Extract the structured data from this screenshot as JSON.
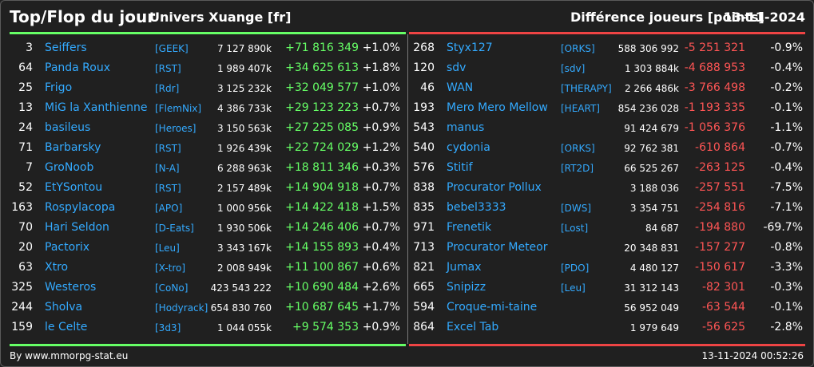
{
  "header": {
    "title": "Top/Flop du jour",
    "univers": "Univers Xuange [fr]",
    "diff_label": "Différence joueurs [points]",
    "date": "13-11-2024"
  },
  "colors": {
    "positive": "#66ff66",
    "negative": "#ff5555",
    "link": "#33aaff",
    "background": "#202020"
  },
  "top": [
    {
      "rank": "3",
      "name": "Seiffers",
      "guild": "[GEEK]",
      "total": "7 127 890k",
      "diff": "+71 816 349",
      "pct": "+1.0%"
    },
    {
      "rank": "64",
      "name": "Panda Roux",
      "guild": "[RST]",
      "total": "1 989 407k",
      "diff": "+34 625 613",
      "pct": "+1.8%"
    },
    {
      "rank": "25",
      "name": "Frigo",
      "guild": "[Rdr]",
      "total": "3 125 232k",
      "diff": "+32 049 577",
      "pct": "+1.0%"
    },
    {
      "rank": "13",
      "name": "MiG la Xanthienne",
      "guild": "[FlemNix]",
      "total": "4 386 733k",
      "diff": "+29 123 223",
      "pct": "+0.7%"
    },
    {
      "rank": "24",
      "name": "basileus",
      "guild": "[Heroes]",
      "total": "3 150 563k",
      "diff": "+27 225 085",
      "pct": "+0.9%"
    },
    {
      "rank": "71",
      "name": "Barbarsky",
      "guild": "[RST]",
      "total": "1 926 439k",
      "diff": "+22 724 029",
      "pct": "+1.2%"
    },
    {
      "rank": "7",
      "name": "GroNoob",
      "guild": "[N-A]",
      "total": "6 288 963k",
      "diff": "+18 811 346",
      "pct": "+0.3%"
    },
    {
      "rank": "52",
      "name": "EtYSontou",
      "guild": "[RST]",
      "total": "2 157 489k",
      "diff": "+14 904 918",
      "pct": "+0.7%"
    },
    {
      "rank": "163",
      "name": "Rospylacopa",
      "guild": "[APO]",
      "total": "1 000 956k",
      "diff": "+14 422 418",
      "pct": "+1.5%"
    },
    {
      "rank": "70",
      "name": "Hari Seldon",
      "guild": "[D-Eats]",
      "total": "1 930 506k",
      "diff": "+14 246 406",
      "pct": "+0.7%"
    },
    {
      "rank": "20",
      "name": "Pactorix",
      "guild": "[Leu]",
      "total": "3 343 167k",
      "diff": "+14 155 893",
      "pct": "+0.4%"
    },
    {
      "rank": "63",
      "name": "Xtro",
      "guild": "[X-tro]",
      "total": "2 008 949k",
      "diff": "+11 100 867",
      "pct": "+0.6%"
    },
    {
      "rank": "325",
      "name": "Westeros",
      "guild": "[CoNo]",
      "total": "423 543 222",
      "diff": "+10 690 484",
      "pct": "+2.6%"
    },
    {
      "rank": "244",
      "name": "Sholva",
      "guild": "[Hodyrack]",
      "total": "654 830 760",
      "diff": "+10 687 645",
      "pct": "+1.7%"
    },
    {
      "rank": "159",
      "name": "le Celte",
      "guild": "[3d3]",
      "total": "1 044 055k",
      "diff": "+9 574 353",
      "pct": "+0.9%"
    }
  ],
  "flop": [
    {
      "rank": "268",
      "name": "Styx127",
      "guild": "[ORKS]",
      "total": "588 306 992",
      "diff": "-5 251 321",
      "pct": "-0.9%"
    },
    {
      "rank": "120",
      "name": "sdv",
      "guild": "[sdv]",
      "total": "1 303 884k",
      "diff": "-4 688 953",
      "pct": "-0.4%"
    },
    {
      "rank": "46",
      "name": "WAN",
      "guild": "[THERAPY]",
      "total": "2 266 486k",
      "diff": "-3 766 498",
      "pct": "-0.2%"
    },
    {
      "rank": "193",
      "name": "Mero Mero Mellow",
      "guild": "[HEART]",
      "total": "854 236 028",
      "diff": "-1 193 335",
      "pct": "-0.1%"
    },
    {
      "rank": "543",
      "name": "manus",
      "guild": "",
      "total": "91 424 679",
      "diff": "-1 056 376",
      "pct": "-1.1%"
    },
    {
      "rank": "540",
      "name": "cydonia",
      "guild": "[ORKS]",
      "total": "92 762 381",
      "diff": "-610 864",
      "pct": "-0.7%"
    },
    {
      "rank": "576",
      "name": "Stitif",
      "guild": "[RT2D]",
      "total": "66 525 267",
      "diff": "-263 125",
      "pct": "-0.4%"
    },
    {
      "rank": "838",
      "name": "Procurator Pollux",
      "guild": "",
      "total": "3 188 036",
      "diff": "-257 551",
      "pct": "-7.5%"
    },
    {
      "rank": "835",
      "name": "bebel3333",
      "guild": "[DWS]",
      "total": "3 354 751",
      "diff": "-254 816",
      "pct": "-7.1%"
    },
    {
      "rank": "971",
      "name": "Frenetik",
      "guild": "[Lost]",
      "total": "84 687",
      "diff": "-194 880",
      "pct": "-69.7%"
    },
    {
      "rank": "713",
      "name": "Procurator Meteor",
      "guild": "",
      "total": "20 348 831",
      "diff": "-157 277",
      "pct": "-0.8%"
    },
    {
      "rank": "821",
      "name": "Jumax",
      "guild": "[PDO]",
      "total": "4 480 127",
      "diff": "-150 617",
      "pct": "-3.3%"
    },
    {
      "rank": "665",
      "name": "Snipizz",
      "guild": "[Leu]",
      "total": "31 312 143",
      "diff": "-82 301",
      "pct": "-0.3%"
    },
    {
      "rank": "594",
      "name": "Croque-mi-taine",
      "guild": "",
      "total": "56 952 049",
      "diff": "-63 544",
      "pct": "-0.1%"
    },
    {
      "rank": "864",
      "name": "Excel Tab",
      "guild": "",
      "total": "1 979 649",
      "diff": "-56 625",
      "pct": "-2.8%"
    }
  ],
  "footer": {
    "source": "By www.mmorpg-stat.eu",
    "timestamp": "13-11-2024 00:52:26"
  }
}
